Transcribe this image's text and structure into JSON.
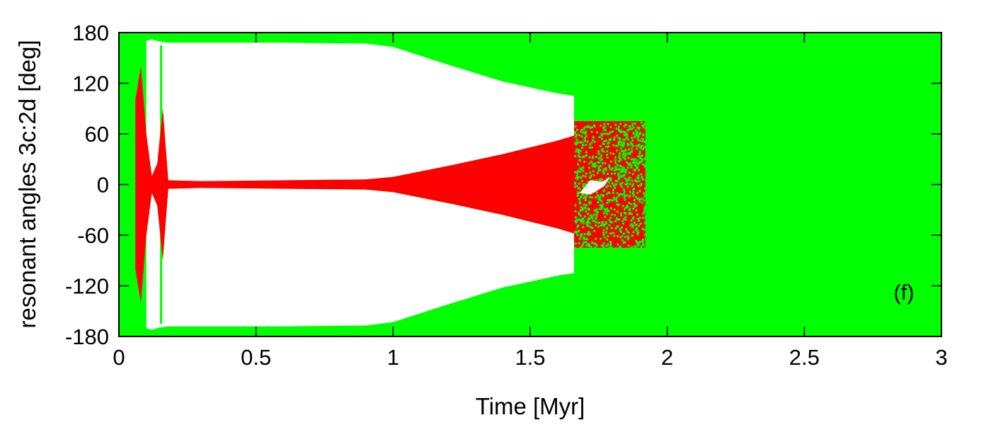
{
  "chart_data": {
    "type": "scatter",
    "xlabel": "Time [Myr]",
    "ylabel": "resonant angles 3c:2d [deg]",
    "xlim": [
      0,
      3
    ],
    "ylim": [
      -180,
      180
    ],
    "xticks": [
      0,
      0.5,
      1,
      1.5,
      2,
      2.5,
      3
    ],
    "xtick_labels": [
      "0",
      "0.5",
      "1",
      "1.5",
      "2",
      "2.5",
      "3"
    ],
    "yticks": [
      -180,
      -120,
      -60,
      0,
      60,
      120,
      180
    ],
    "ytick_labels": [
      "-180",
      "-120",
      "-60",
      "0",
      "60",
      "120",
      "180"
    ],
    "annotation": "(f)",
    "grid": false,
    "legend": "none",
    "series": [
      {
        "color": "#00ff00",
        "description_points": "circulating angle, fills full range",
        "x_range": [
          0,
          3
        ],
        "y_range": [
          -180,
          180
        ]
      },
      {
        "color": "#ff0000",
        "libration_envelope": {
          "x": [
            0.06,
            0.08,
            0.1,
            0.12,
            0.14,
            0.16,
            0.18,
            0.3,
            0.6,
            0.9,
            1.0,
            1.2,
            1.4,
            1.6,
            1.66
          ],
          "amplitude": [
            100,
            140,
            60,
            10,
            25,
            90,
            5,
            4,
            5,
            6,
            9,
            22,
            36,
            52,
            58
          ]
        },
        "chaotic_region": {
          "x_range": [
            1.66,
            1.92
          ],
          "y_range": [
            -75,
            75
          ]
        }
      }
    ],
    "libration_gap_outer": {
      "x": [
        0.1,
        0.12,
        0.14,
        0.18,
        0.6,
        0.9,
        1.0,
        1.2,
        1.4,
        1.6,
        1.66
      ],
      "upper": [
        170,
        172,
        170,
        168,
        168,
        167,
        163,
        142,
        122,
        108,
        105
      ]
    },
    "colors": {
      "circulation": "#00ff00",
      "libration": "#ff0000",
      "background": "#ffffff",
      "axes": "#000000"
    }
  }
}
